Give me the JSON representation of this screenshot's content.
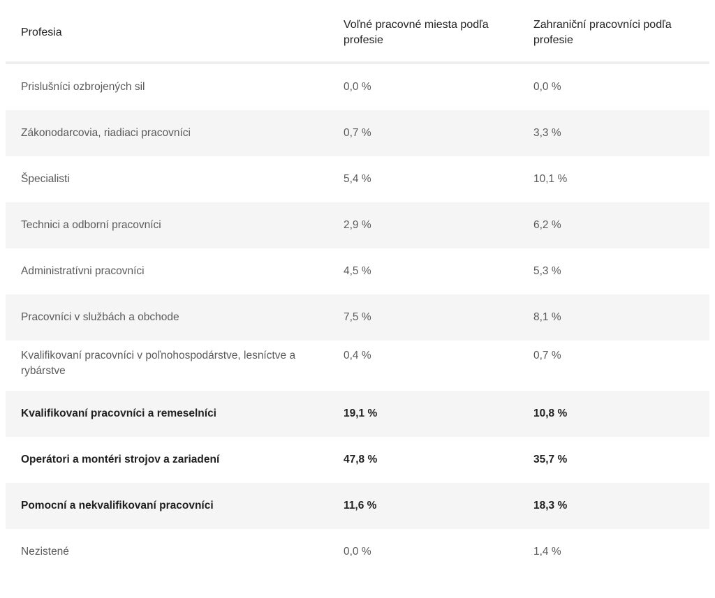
{
  "table": {
    "headers": {
      "profession": "Profesia",
      "vacancies": "Voľné pracovné miesta podľa profesie",
      "foreign_workers": "Zahraniční pracovníci podľa profesie"
    },
    "rows": [
      {
        "profession": "Prislušníci ozbrojených sil",
        "vacancies": "0,0 %",
        "foreign_workers": "0,0 %"
      },
      {
        "profession": "Zákonodarcovia, riadiaci pracovníci",
        "vacancies": "0,7 %",
        "foreign_workers": "3,3 %"
      },
      {
        "profession": "Špecialisti",
        "vacancies": "5,4 %",
        "foreign_workers": "10,1 %"
      },
      {
        "profession": "Technici a odborní pracovníci",
        "vacancies": "2,9 %",
        "foreign_workers": "6,2 %"
      },
      {
        "profession": "Administratívni pracovníci",
        "vacancies": "4,5 %",
        "foreign_workers": "5,3 %"
      },
      {
        "profession": "Pracovníci v službách a obchode",
        "vacancies": "7,5 %",
        "foreign_workers": "8,1 %"
      },
      {
        "profession": "Kvalifikovaní pracovníci v poľnohospodárstve, lesníctve a rybárstve",
        "vacancies": "0,4 %",
        "foreign_workers": "0,7 %"
      },
      {
        "profession": "Kvalifikovaní pracovníci a remeselníci",
        "vacancies": "19,1 %",
        "foreign_workers": "10,8 %"
      },
      {
        "profession": "Operátori a montéri strojov a zariadení",
        "vacancies": "47,8 %",
        "foreign_workers": "35,7 %"
      },
      {
        "profession": "Pomocní a nekvalifikovaní pracovníci",
        "vacancies": "11,6 %",
        "foreign_workers": "18,3 %"
      },
      {
        "profession": "Nezistené",
        "vacancies": "0,0 %",
        "foreign_workers": "1,4 %"
      }
    ]
  }
}
